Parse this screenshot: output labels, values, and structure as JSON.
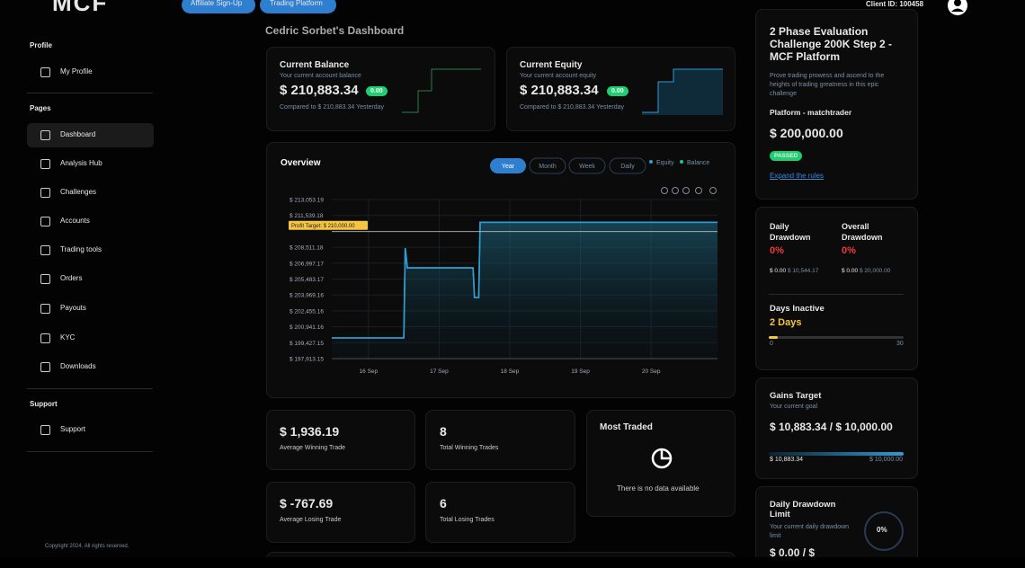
{
  "header": {
    "logo": "MCF",
    "buttons": [
      "Affiliate Sign-Up",
      "Trading Platform"
    ],
    "client_id": "Client ID: 100458"
  },
  "sidebar": {
    "sections": [
      {
        "title": "Profile",
        "items": [
          "My Profile"
        ]
      },
      {
        "title": "Pages",
        "items": [
          "Dashboard",
          "Analysis Hub",
          "Challenges",
          "Accounts",
          "Trading tools",
          "Orders",
          "Payouts",
          "KYC",
          "Downloads"
        ]
      },
      {
        "title": "Support",
        "items": [
          "Support"
        ]
      }
    ],
    "copyright": "Copyright 2024. All rights reserved."
  },
  "dashboard_title": "Cedric Sorbet's Dashboard",
  "balance_card": {
    "title": "Current Balance",
    "subtitle": "Your current account balance",
    "value": "$ 210,883.34",
    "badge": "0.00",
    "compare": "Compared to $ 210,883.34 Yesterday"
  },
  "equity_card": {
    "title": "Current Equity",
    "subtitle": "Your current account equity",
    "value": "$ 210,883.34",
    "badge": "0.00",
    "compare": "Compared to $ 210,883.34 Yesterday"
  },
  "overview_tabs": [
    "Year",
    "Month",
    "Week",
    "Daily"
  ],
  "chart_data": {
    "type": "line",
    "title": "Overview",
    "grid": true,
    "x": [
      15.48,
      16.5,
      16.52,
      16.55,
      17.48,
      17.5,
      17.56,
      17.58,
      20.94
    ],
    "xlim": [
      15.48,
      20.94
    ],
    "xticks": [
      {
        "value": 16,
        "label": "16 Sep"
      },
      {
        "value": 17,
        "label": "17 Sep"
      },
      {
        "value": 18,
        "label": "18 Sep"
      },
      {
        "value": 19,
        "label": "19 Sep"
      },
      {
        "value": 20,
        "label": "20 Sep"
      }
    ],
    "ylim": [
      197913.15,
      213053.19
    ],
    "yticks": [
      {
        "value": 197913.15,
        "label": "$ 197,913.15"
      },
      {
        "value": 199427.15,
        "label": "$ 199,427.15"
      },
      {
        "value": 200941.16,
        "label": "$ 200,941.16"
      },
      {
        "value": 202455.16,
        "label": "$ 202,455.16"
      },
      {
        "value": 203969.16,
        "label": "$ 203,969.16"
      },
      {
        "value": 205483.17,
        "label": "$ 205,483.17"
      },
      {
        "value": 206997.17,
        "label": "$ 206,997.17"
      },
      {
        "value": 208511.18,
        "label": "$ 208,511.18"
      },
      {
        "value": 211539.18,
        "label": "$ 211,539.18"
      },
      {
        "value": 213053.19,
        "label": "$ 213,053.19"
      }
    ],
    "series": [
      {
        "name": "Equity",
        "color": "#2f9bd6",
        "values": [
          199880,
          199880,
          208430,
          206550,
          206550,
          203730,
          203730,
          210883,
          210883
        ]
      },
      {
        "name": "Balance",
        "color": "#22c38e",
        "values": [
          199880,
          199880,
          208430,
          206550,
          206550,
          203730,
          203730,
          210883,
          210883
        ]
      }
    ],
    "annotations": [
      {
        "label": "Profit Target: $ 210,000.00",
        "value": 210000
      }
    ]
  },
  "stats": [
    {
      "value": "$ 1,936.19",
      "label": "Average Winning Trade"
    },
    {
      "value": "8",
      "label": "Total Winning Trades"
    },
    {
      "value": "$ -767.69",
      "label": "Average Losing Trade"
    },
    {
      "value": "6",
      "label": "Total Losing Trades"
    }
  ],
  "most_traded": {
    "title": "Most Traded",
    "empty": "There is no data available"
  },
  "challenge": {
    "title": "2 Phase Evaluation Challenge 200K Step 2 - MCF Platform",
    "description": "Prove trading prowess and ascend to the heights of trading greatness in this epic challenge",
    "platform": "Platform - matchtrader",
    "amount": "$ 200,000.00",
    "status": "PASSED",
    "link": "Expand the rules"
  },
  "drawdown": {
    "daily": {
      "title": "Daily Drawdown",
      "percent": "0%",
      "current": "$ 0.00",
      "limit": "$ 10,544.17"
    },
    "overall": {
      "title": "Overall Drawdown",
      "percent": "0%",
      "current": "$ 0.00",
      "limit": "$ 20,000.00"
    }
  },
  "days_inactive": {
    "title": "Days Inactive",
    "value": "2 Days",
    "min": "0",
    "max": "30"
  },
  "gains_target": {
    "title": "Gains Target",
    "subtitle": "Your current goal",
    "value": "$ 10,883.34 / $ 10,000.00",
    "current": "$ 10,883.34",
    "target": "$ 10,000.00"
  },
  "daily_drawdown_limit": {
    "title": "Daily Drawdown Limit",
    "subtitle": "Your current daily drawdown limit",
    "percent": "0%",
    "value": "$ 0.00 / $"
  }
}
